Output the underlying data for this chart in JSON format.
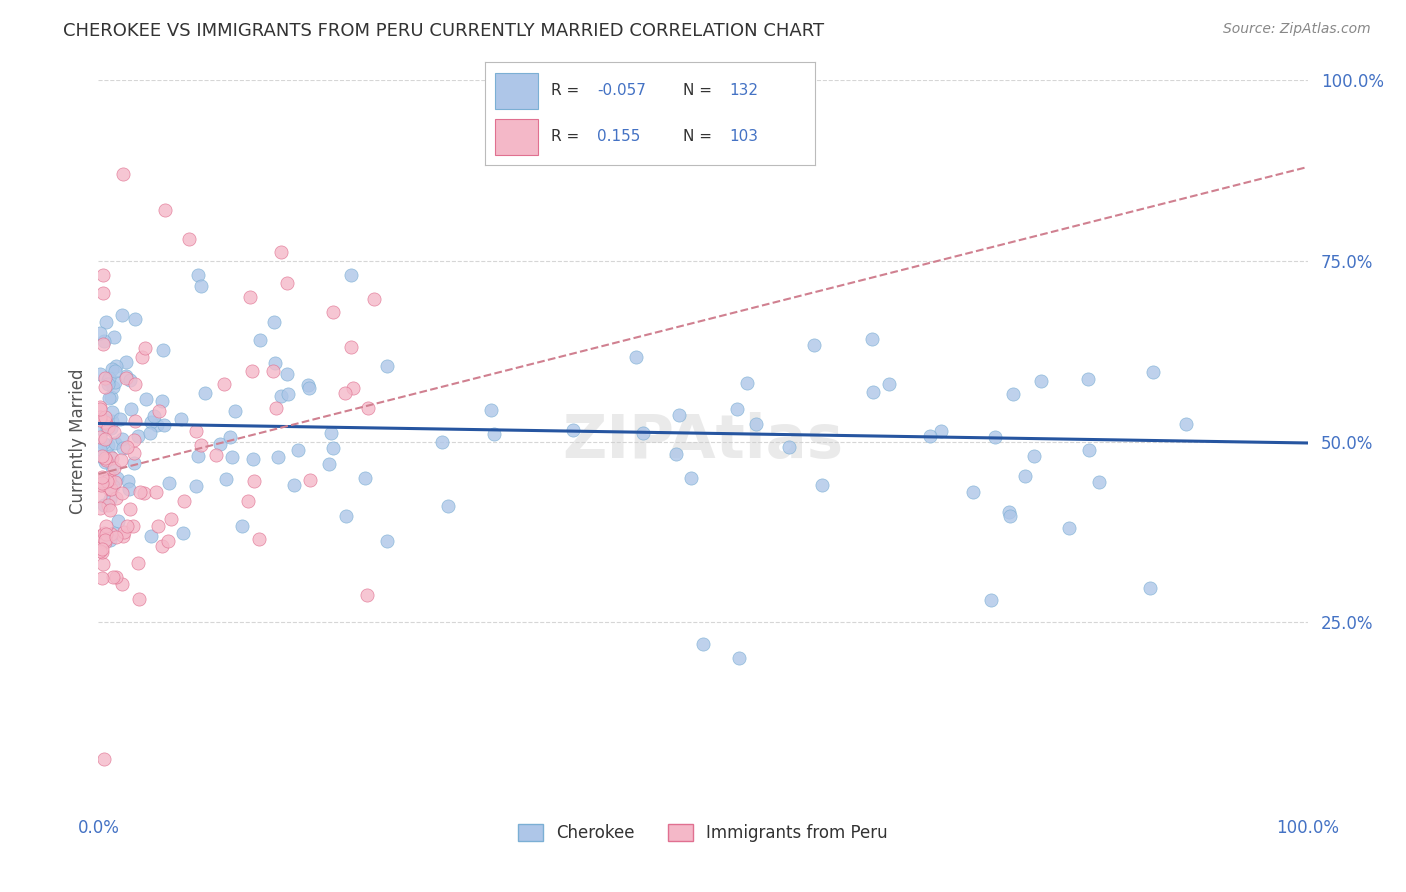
{
  "title": "CHEROKEE VS IMMIGRANTS FROM PERU CURRENTLY MARRIED CORRELATION CHART",
  "source": "Source: ZipAtlas.com",
  "ylabel": "Currently Married",
  "xlim": [
    0,
    1.0
  ],
  "ylim": [
    0,
    1.0
  ],
  "xtick_labels": [
    "0.0%",
    "100.0%"
  ],
  "ytick_labels": [
    "25.0%",
    "50.0%",
    "75.0%",
    "100.0%"
  ],
  "ytick_vals": [
    0.25,
    0.5,
    0.75,
    1.0
  ],
  "cherokee_color": "#aec6e8",
  "cherokee_edge": "#7bafd4",
  "peru_color": "#f4b8c8",
  "peru_edge": "#e07090",
  "blue_line_color": "#2655a0",
  "pink_line_color": "#d08090",
  "R_cherokee": -0.057,
  "N_cherokee": 132,
  "R_peru": 0.155,
  "N_peru": 103,
  "background_color": "#ffffff",
  "grid_color": "#cccccc",
  "title_color": "#333333",
  "watermark": "ZIPAtlas",
  "axis_label_color": "#4472c4",
  "blue_line_y0": 0.525,
  "blue_line_y1": 0.498,
  "pink_line_y0": 0.455,
  "pink_line_y1": 0.88
}
